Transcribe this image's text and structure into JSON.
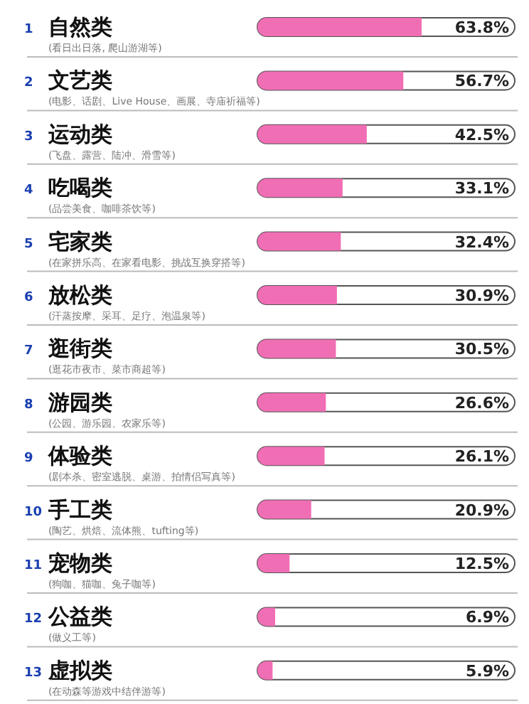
{
  "chart_data": {
    "type": "bar",
    "orientation": "horizontal",
    "xlim": [
      0,
      100
    ],
    "categories": [
      "1 自然类\n(看日出日落, 爬山游湖等)",
      "2 文艺类\n(电影、话剧、Live House、画展、寺庙祈福等)",
      "3 运动类\n(飞盘、露营、陆冲、滑雪等)",
      "4 吃喝类\n(品尝美食、咖啡茶饮等)",
      "5 宅家类\n(在家拼乐高、在家看电影、挑战互换穿搭等)",
      "6 放松类\n(汗蒸按摩、采耳、足疗、泡温泉等)",
      "7 逛街类\n(逛花市夜市、菜市商超等)",
      "8 游园类\n(公园、游乐园、农家乐等)",
      "9 体验类\n(剧本杀、密室逃脱、桌游、拍情侣写真等)",
      "10 手工类\n(陶艺、烘焙、流体熊、tufting等)",
      "11 宠物类\n(狗咖、猫咖、兔子咖等)",
      "12 公益类\n(做义工等)",
      "13 虚拟类\n(在动森等游戏中结伴游等)"
    ],
    "values": [
      63.8,
      56.7,
      42.5,
      33.1,
      32.4,
      30.9,
      30.5,
      26.6,
      26.1,
      20.9,
      12.5,
      6.9,
      5.9
    ],
    "value_labels": [
      "63.8%",
      "56.7%",
      "42.5%",
      "33.1%",
      "32.4%",
      "30.9%",
      "30.5%",
      "26.6%",
      "26.1%",
      "20.9%",
      "12.5%",
      "6.9%",
      "5.9%"
    ],
    "color": "#f06eb4"
  }
}
